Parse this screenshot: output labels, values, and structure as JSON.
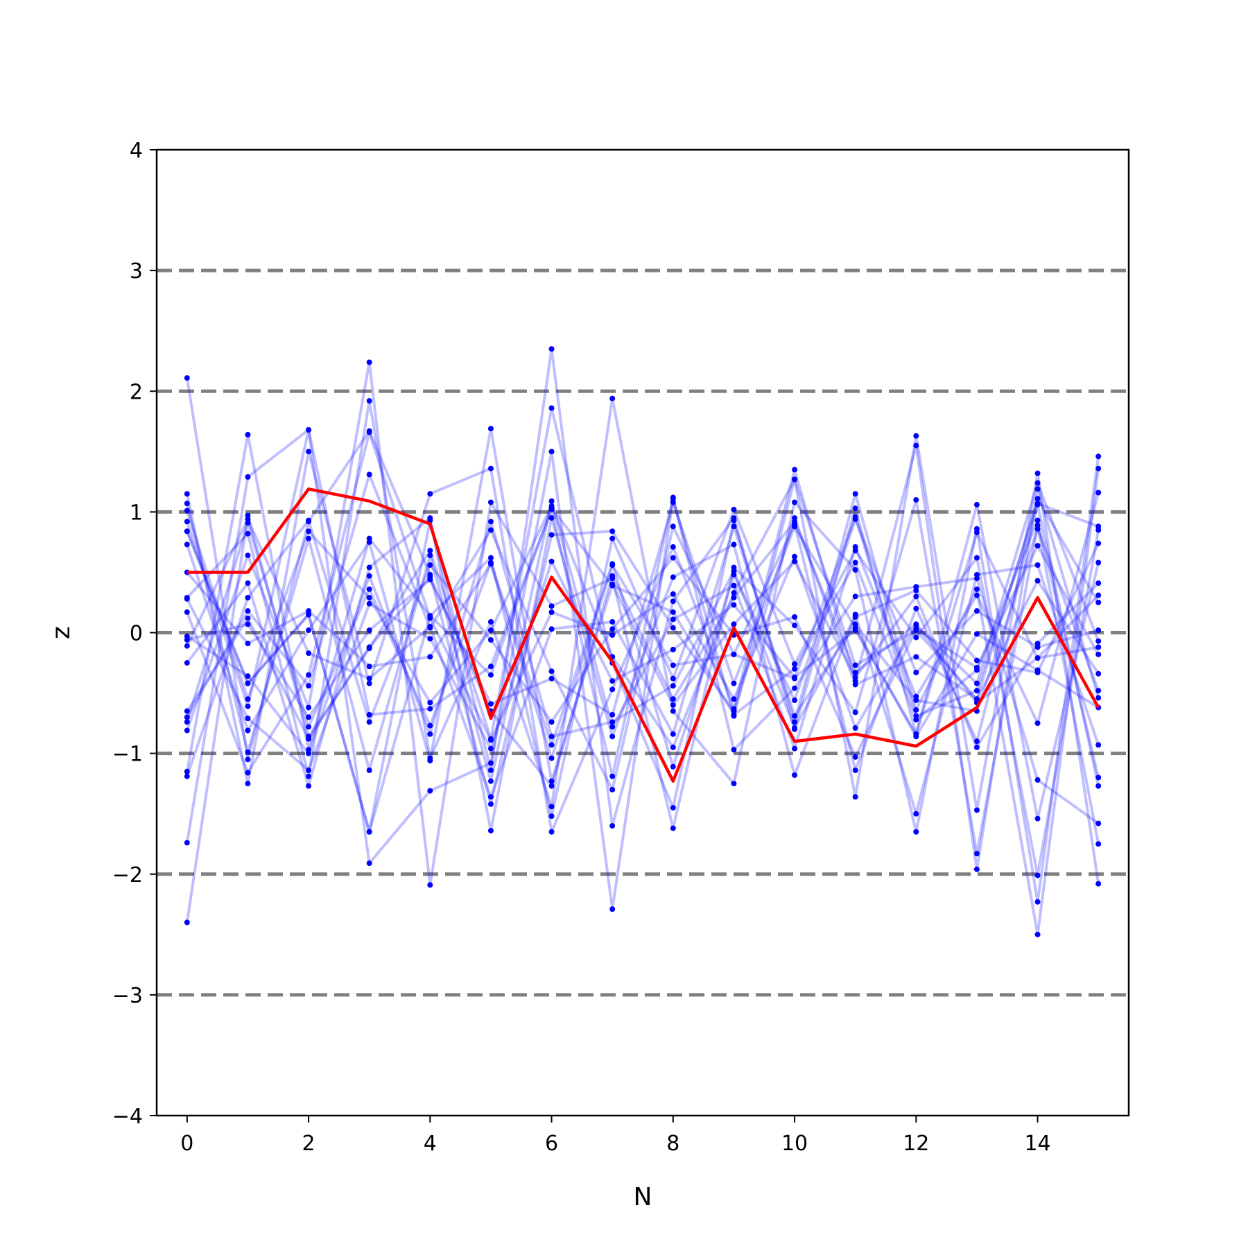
{
  "chart_data": {
    "type": "line",
    "title": "",
    "xlabel": "N",
    "ylabel": "z",
    "xlim": [
      -0.5,
      15.5
    ],
    "ylim": [
      -4,
      4
    ],
    "xticks": [
      0,
      2,
      4,
      6,
      8,
      10,
      12,
      14
    ],
    "yticks": [
      -4,
      -3,
      -2,
      -1,
      0,
      1,
      2,
      3,
      4
    ],
    "reference_lines": [
      -3,
      -2,
      -1,
      0,
      1,
      2,
      3
    ],
    "grid": false,
    "colors": {
      "ensemble": "#0000ff",
      "highlight": "#ff0000",
      "reference": "#808080"
    },
    "x": [
      0,
      1,
      2,
      3,
      4,
      5,
      6,
      7,
      8,
      9,
      10,
      11,
      12,
      13,
      14,
      15
    ],
    "highlight_series": {
      "values": [
        0.5,
        0.5,
        1.19,
        1.09,
        0.9,
        -0.71,
        0.46,
        -0.24,
        -1.23,
        0.04,
        -0.9,
        -0.84,
        -0.94,
        -0.62,
        0.29,
        -0.62
      ]
    },
    "series": [
      {
        "values": [
          2.11,
          -1.05,
          0.92,
          1.67,
          0.48,
          -1.42,
          0.81,
          0.84,
          0.04,
          -0.65,
          0.95,
          -0.43,
          -0.2,
          -0.55,
          1.11,
          0.25
        ]
      },
      {
        "values": [
          -2.4,
          0.97,
          -0.86,
          -0.13,
          0.68,
          -0.88,
          1.86,
          -0.25,
          -1.45,
          0.93,
          -0.74,
          1.15,
          -0.64,
          0.36,
          -2.5,
          1.36
        ]
      },
      {
        "values": [
          1.15,
          -1.25,
          1.5,
          -0.42,
          1.15,
          1.36,
          -1.65,
          -0.47,
          0.71,
          -0.63,
          1.35,
          -0.4,
          1.55,
          -1.96,
          1.19,
          -0.54
        ]
      },
      {
        "values": [
          -1.74,
          1.29,
          1.68,
          -1.91,
          -1.31,
          -1.08,
          1.5,
          -2.29,
          1.11,
          -0.69,
          1.27,
          -1.36,
          1.63,
          -1.47,
          1.32,
          -2.08
        ]
      },
      {
        "values": [
          0.29,
          0.82,
          -1.19,
          1.92,
          -1.04,
          0.09,
          -1.44,
          1.94,
          -0.65,
          -1.25,
          1.08,
          0.52,
          -1.65,
          0.86,
          -2.23,
          1.46
        ]
      },
      {
        "values": [
          -0.81,
          0.64,
          -0.62,
          2.24,
          -2.09,
          1.08,
          0.22,
          0.45,
          -1.62,
          0.54,
          0.06,
          -0.66,
          1.1,
          -1.83,
          0.89,
          -1.75
        ]
      },
      {
        "values": [
          0.84,
          -0.42,
          0.15,
          -1.65,
          0.93,
          -1.14,
          2.35,
          -1.6,
          0.26,
          0.95,
          -0.8,
          1.03,
          -0.84,
          1.06,
          -1.54,
          0.58
        ]
      },
      {
        "values": [
          -1.15,
          1.64,
          -0.97,
          0.78,
          0.14,
          0.62,
          -1.52,
          0.78,
          -0.38,
          1.02,
          -0.26,
          0.68,
          -0.04,
          0.62,
          -2.01,
          0.85
        ]
      },
      {
        "values": [
          0.92,
          -0.61,
          1.68,
          -0.68,
          -0.63,
          -0.28,
          1.02,
          -1.19,
          1.12,
          -0.97,
          -0.46,
          0.3,
          0.38,
          0.45,
          -1.22,
          -1.58
        ]
      },
      {
        "values": [
          -0.7,
          0.18,
          -0.44,
          1.31,
          0.04,
          0.85,
          -0.32,
          -1.3,
          0.88,
          -0.18,
          0.9,
          -1.14,
          0.2,
          -0.9,
          1.06,
          -1.27
        ]
      },
      {
        "values": [
          1.07,
          -0.99,
          0.78,
          -1.14,
          0.64,
          -1.23,
          1.09,
          -0.78,
          0.11,
          0.39,
          -0.96,
          0.71,
          -0.53,
          0.31,
          -0.75,
          1.16
        ]
      },
      {
        "values": [
          -0.25,
          0.41,
          -1.27,
          0.54,
          0.95,
          -1.64,
          0.95,
          -0.86,
          0.46,
          0.73,
          -1.18,
          0.15,
          -1.5,
          0.48,
          0.56,
          -0.93
        ]
      },
      {
        "values": [
          0.73,
          -0.81,
          0.02,
          0.75,
          -1.06,
          1.69,
          -1.23,
          0.4,
          -0.6,
          0.07,
          0.59,
          -0.37,
          0.3,
          -0.95,
          -0.09,
          0.41
        ]
      },
      {
        "values": [
          -0.74,
          0.91,
          -0.78,
          0.36,
          -0.77,
          0.58,
          -0.93,
          0.57,
          -1.11,
          0.48,
          -0.56,
          0.94,
          -0.33,
          0.18,
          -0.12,
          0.02
        ]
      },
      {
        "values": [
          0.17,
          -1.16,
          -0.35,
          1.66,
          0.12,
          -0.89,
          0.17,
          -0.02,
          0.32,
          -0.55,
          0.63,
          -0.79,
          0.06,
          -0.42,
          1.24,
          -0.07
        ]
      },
      {
        "values": [
          -1.19,
          0.29,
          0.93,
          -0.74,
          0.56,
          -0.06,
          -0.74,
          0.03,
          0.62,
          -0.02,
          0.13,
          -1.03,
          0.03,
          -0.29,
          0.72,
          -0.18
        ]
      },
      {
        "values": [
          0.28,
          -0.71,
          -1.14,
          0.24,
          -0.05,
          -0.96,
          0.59,
          -0.4,
          -0.14,
          0.23,
          -0.37,
          0.02,
          -0.84,
          0.83,
          -0.21,
          -0.12
        ]
      },
      {
        "values": [
          -0.11,
          0.94,
          -0.17,
          -0.38,
          0.05,
          -1.36,
          0.03,
          0.09,
          -0.84,
          0.88,
          -0.69,
          0.07,
          -0.56,
          -0.65,
          0.86,
          -0.48
        ]
      },
      {
        "values": [
          1.01,
          -0.55,
          0.84,
          0.29,
          -0.58,
          0.02,
          1.05,
          -0.2,
          -0.95,
          0.33,
          1.27,
          -0.27,
          0.02,
          -0.55,
          0.43,
          -0.34
        ]
      },
      {
        "values": [
          -0.06,
          0.07,
          -0.7,
          0.02,
          0.44,
          -0.59,
          -0.38,
          -0.68,
          1.08,
          -0.42,
          0.88,
          0.04,
          -0.86,
          -0.01,
          -0.31,
          -0.62
        ]
      },
      {
        "values": [
          0.5,
          -0.09,
          0.18,
          -0.28,
          -0.2,
          0.57,
          -1.04,
          0.56,
          -0.27,
          -0.18,
          -0.38,
          0.96,
          -0.69,
          -0.48,
          1.07,
          0.88
        ]
      },
      {
        "values": [
          -0.03,
          -0.36,
          -1.0,
          0.47,
          -0.84,
          0.92,
          -0.86,
          -0.74,
          -0.44,
          0.51,
          -0.79,
          0.13,
          0.35,
          -0.23,
          -0.33,
          0.74
        ]
      },
      {
        "values": [
          0.84,
          -0.42,
          0.15,
          -1.65,
          0.14,
          -0.35,
          1.03,
          0.39,
          0.17,
          -0.68,
          -0.3,
          0.58,
          -0.72,
          -0.31,
          0.93,
          -1.2
        ]
      },
      {
        "values": [
          -0.65,
          0.12,
          -0.88,
          -0.12,
          0.46,
          -0.65,
          -1.27,
          0.47,
          -0.55,
          0.29,
          0.92,
          -0.33,
          0.07,
          -0.58,
          -0.21,
          0.31
        ]
      }
    ]
  }
}
